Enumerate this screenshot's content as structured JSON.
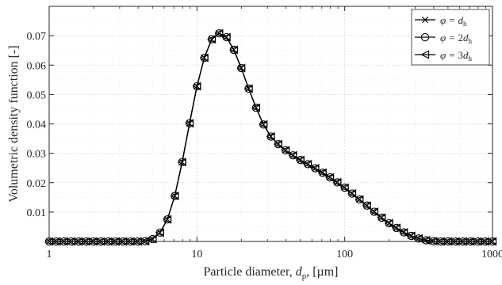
{
  "chart_data": {
    "type": "line",
    "xlabel": "Particle diameter, d_p, [µm]",
    "xlabel_parts": {
      "prefix": "Particle diameter, ",
      "var": "d",
      "sub": "p",
      "suffix": ", [µm]"
    },
    "ylabel": "Volumetric density function [-]",
    "xscale": "log",
    "xlim": [
      1,
      1000
    ],
    "ylim": [
      0,
      0.08
    ],
    "xticks": [
      1,
      10,
      100,
      1000
    ],
    "xtick_labels": [
      "1",
      "10",
      "100",
      "1000"
    ],
    "yticks": [
      0.01,
      0.02,
      0.03,
      0.04,
      0.05,
      0.06,
      0.07
    ],
    "ytick_labels": [
      "0.01",
      "0.02",
      "0.03",
      "0.04",
      "0.05",
      "0.06",
      "0.07"
    ],
    "grid": true,
    "legend_position": "top-right",
    "colors": {
      "line": "#000000",
      "grid": "#d9d9d9",
      "axis": "#262626"
    },
    "x": [
      1,
      1.122,
      1.259,
      1.413,
      1.585,
      1.778,
      1.995,
      2.239,
      2.512,
      2.818,
      3.162,
      3.548,
      3.981,
      4.467,
      5.012,
      5.623,
      6.31,
      7.079,
      7.943,
      8.913,
      10,
      11.22,
      12.59,
      14.13,
      15.85,
      17.78,
      19.95,
      22.39,
      25.12,
      28.18,
      31.62,
      35.48,
      39.81,
      44.67,
      50.12,
      56.23,
      63.1,
      70.79,
      79.43,
      89.13,
      100,
      112.2,
      125.9,
      141.3,
      158.5,
      177.8,
      199.5,
      223.9,
      251.2,
      281.8,
      316.2,
      354.8,
      398.1,
      446.7,
      501.2,
      562.3,
      631,
      707.9,
      794.3,
      891.3,
      1000
    ],
    "series": [
      {
        "name_var": "φ = ",
        "name_coef": "",
        "name_d": "d",
        "name_sub": "h",
        "marker": "x",
        "values": [
          0,
          0,
          0,
          0,
          0,
          0,
          0,
          0,
          0,
          0,
          0,
          0,
          0,
          0.0001,
          0.0008,
          0.003,
          0.0075,
          0.0155,
          0.027,
          0.0402,
          0.0528,
          0.0625,
          0.0688,
          0.0708,
          0.0695,
          0.0652,
          0.059,
          0.052,
          0.0455,
          0.0398,
          0.0357,
          0.0331,
          0.031,
          0.0293,
          0.0277,
          0.0263,
          0.0249,
          0.0234,
          0.0218,
          0.0201,
          0.0183,
          0.0163,
          0.0143,
          0.0122,
          0.0101,
          0.0081,
          0.0062,
          0.0046,
          0.0031,
          0.0019,
          0.001,
          0.0004,
          0.0001,
          0,
          0,
          0,
          0,
          0,
          0,
          0,
          0
        ]
      },
      {
        "name_var": "φ = ",
        "name_coef": "2",
        "name_d": "d",
        "name_sub": "h",
        "marker": "o",
        "values": [
          0,
          0,
          0,
          0,
          0,
          0,
          0,
          0,
          0,
          0,
          0,
          0,
          0,
          0.0001,
          0.0008,
          0.003,
          0.0075,
          0.0155,
          0.027,
          0.0402,
          0.0528,
          0.0625,
          0.0688,
          0.0708,
          0.0695,
          0.0652,
          0.059,
          0.052,
          0.0455,
          0.0398,
          0.0357,
          0.0331,
          0.031,
          0.0293,
          0.0277,
          0.0263,
          0.0249,
          0.0234,
          0.0218,
          0.0201,
          0.0183,
          0.0163,
          0.0143,
          0.0122,
          0.0101,
          0.0081,
          0.0062,
          0.0046,
          0.0031,
          0.0019,
          0.001,
          0.0004,
          0.0001,
          0,
          0,
          0,
          0,
          0,
          0,
          0,
          0
        ]
      },
      {
        "name_var": "φ = ",
        "name_coef": "3",
        "name_d": "d",
        "name_sub": "h",
        "marker": "<",
        "values": [
          0,
          0,
          0,
          0,
          0,
          0,
          0,
          0,
          0,
          0,
          0,
          0,
          0,
          0.0001,
          0.0008,
          0.003,
          0.0075,
          0.0155,
          0.027,
          0.0402,
          0.0528,
          0.0625,
          0.0688,
          0.0708,
          0.0695,
          0.0652,
          0.059,
          0.052,
          0.0455,
          0.0398,
          0.0357,
          0.0331,
          0.031,
          0.0293,
          0.0277,
          0.0263,
          0.0249,
          0.0234,
          0.0218,
          0.0201,
          0.0183,
          0.0163,
          0.0143,
          0.0122,
          0.0101,
          0.0081,
          0.0062,
          0.0046,
          0.0031,
          0.0019,
          0.001,
          0.0004,
          0.0001,
          0,
          0,
          0,
          0,
          0,
          0,
          0,
          0
        ]
      }
    ]
  }
}
